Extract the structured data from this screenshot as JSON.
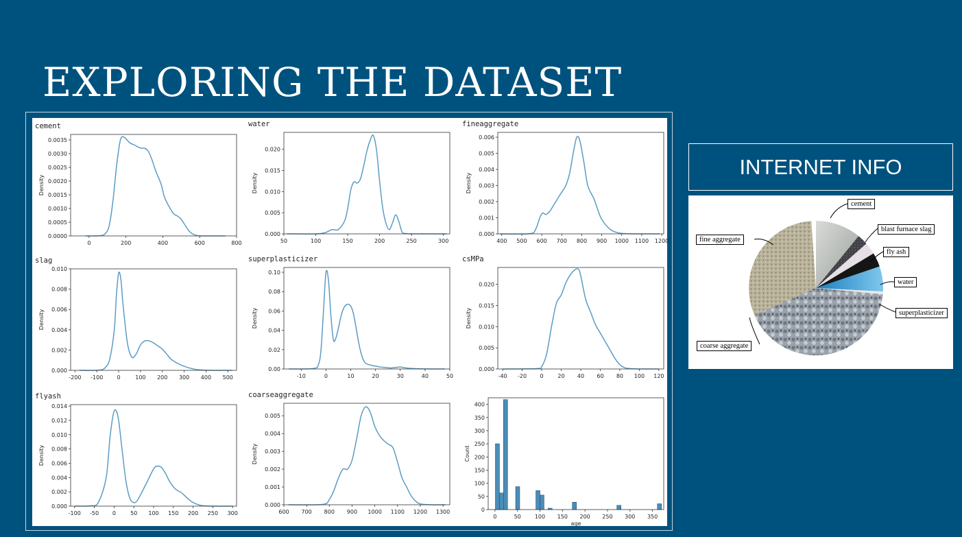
{
  "slide": {
    "title": "EXPLORING THE DATASET",
    "info_header": "INTERNET INFO",
    "colors": {
      "background": "#00527E",
      "line": "#5B9BC3",
      "bar": "#4C8DB8"
    }
  },
  "chart_data": [
    {
      "id": "cement",
      "type": "line",
      "name": "cement",
      "ylabel": "Density",
      "xlim": [
        -100,
        800
      ],
      "ylim": [
        0,
        0.0037
      ],
      "xticks": [
        0,
        200,
        400,
        600,
        800
      ],
      "yticks": [
        0.0,
        0.0005,
        0.001,
        0.0015,
        0.002,
        0.0025,
        0.003,
        0.0035
      ],
      "ytick_labels": [
        "0.0000",
        "0.0005",
        "0.0010",
        "0.0015",
        "0.0020",
        "0.0025",
        "0.0030",
        "0.0035"
      ],
      "x": [
        -20,
        60,
        90,
        110,
        130,
        150,
        170,
        190,
        220,
        250,
        280,
        300,
        320,
        340,
        360,
        390,
        410,
        440,
        460,
        480,
        500,
        520,
        540,
        560,
        590,
        620,
        650,
        700,
        740
      ],
      "y": [
        0,
        1e-05,
        0.0001,
        0.0004,
        0.0013,
        0.0026,
        0.0035,
        0.0036,
        0.0034,
        0.0033,
        0.0032,
        0.0032,
        0.0031,
        0.0028,
        0.0024,
        0.0019,
        0.0014,
        0.001,
        0.0008,
        0.00072,
        0.0006,
        0.0004,
        0.0002,
        8e-05,
        1e-05,
        0,
        0,
        0,
        0
      ]
    },
    {
      "id": "water",
      "type": "line",
      "name": "water",
      "ylabel": "Density",
      "xlim": [
        50,
        310
      ],
      "ylim": [
        0,
        0.024
      ],
      "xticks": [
        50,
        100,
        150,
        200,
        250,
        300
      ],
      "yticks": [
        0.0,
        0.005,
        0.01,
        0.015,
        0.02
      ],
      "ytick_labels": [
        "0.000",
        "0.005",
        "0.010",
        "0.015",
        "0.020"
      ],
      "x": [
        55,
        100,
        115,
        125,
        135,
        145,
        150,
        155,
        160,
        165,
        170,
        175,
        180,
        185,
        190,
        195,
        200,
        205,
        210,
        215,
        220,
        225,
        230,
        235,
        240,
        250,
        280,
        305
      ],
      "y": [
        0,
        0,
        0.0003,
        0.001,
        0.001,
        0.003,
        0.006,
        0.0105,
        0.0123,
        0.012,
        0.013,
        0.016,
        0.0195,
        0.022,
        0.0233,
        0.02,
        0.0125,
        0.006,
        0.0025,
        0.001,
        0.0025,
        0.0045,
        0.003,
        0.0005,
        0.0001,
        0,
        0,
        0
      ]
    },
    {
      "id": "fineaggregate",
      "type": "line",
      "name": "fineaggregate",
      "ylabel": "Density",
      "xlim": [
        380,
        1210
      ],
      "ylim": [
        0,
        0.0063
      ],
      "xticks": [
        400,
        500,
        600,
        700,
        800,
        900,
        1000,
        1100,
        1200
      ],
      "yticks": [
        0.0,
        0.001,
        0.002,
        0.003,
        0.004,
        0.005,
        0.006
      ],
      "ytick_labels": [
        "0.000",
        "0.001",
        "0.002",
        "0.003",
        "0.004",
        "0.005",
        "0.006"
      ],
      "x": [
        390,
        540,
        570,
        590,
        605,
        620,
        640,
        660,
        690,
        720,
        740,
        760,
        775,
        790,
        810,
        830,
        860,
        880,
        900,
        940,
        980,
        1030,
        1100,
        1190
      ],
      "y": [
        0,
        1e-05,
        0.0003,
        0.001,
        0.0013,
        0.0012,
        0.0014,
        0.0018,
        0.0024,
        0.003,
        0.0038,
        0.0052,
        0.006,
        0.0058,
        0.0045,
        0.003,
        0.0022,
        0.0015,
        0.0009,
        0.0003,
        7e-05,
        1e-05,
        0,
        0
      ]
    },
    {
      "id": "slag",
      "type": "line",
      "name": "slag",
      "ylabel": "Density",
      "xlim": [
        -220,
        540
      ],
      "ylim": [
        0,
        0.01
      ],
      "xticks": [
        -200,
        -100,
        0,
        100,
        200,
        300,
        400,
        500
      ],
      "yticks": [
        0.0,
        0.002,
        0.004,
        0.006,
        0.008,
        0.01
      ],
      "ytick_labels": [
        "0.000",
        "0.002",
        "0.004",
        "0.006",
        "0.008",
        "0.010"
      ],
      "x": [
        -180,
        -90,
        -60,
        -40,
        -20,
        -10,
        0,
        10,
        20,
        40,
        60,
        80,
        100,
        120,
        140,
        160,
        180,
        200,
        220,
        240,
        260,
        300,
        350,
        400,
        450,
        520
      ],
      "y": [
        0,
        2e-05,
        0.0003,
        0.0012,
        0.004,
        0.0075,
        0.0096,
        0.009,
        0.0065,
        0.0027,
        0.0013,
        0.0016,
        0.0025,
        0.0029,
        0.0029,
        0.0027,
        0.0024,
        0.0021,
        0.0016,
        0.0011,
        0.0008,
        0.0004,
        0.0001,
        2e-05,
        0,
        0
      ]
    },
    {
      "id": "superplasticizer",
      "type": "line",
      "name": "superplasticizer",
      "ylabel": "Density",
      "xlim": [
        -17,
        50
      ],
      "ylim": [
        0,
        0.105
      ],
      "xticks": [
        -10,
        0,
        10,
        20,
        30,
        40,
        50
      ],
      "yticks": [
        0.0,
        0.02,
        0.04,
        0.06,
        0.08,
        0.1
      ],
      "ytick_labels": [
        "0.00",
        "0.02",
        "0.04",
        "0.06",
        "0.08",
        "0.10"
      ],
      "x": [
        -15,
        -5,
        -3,
        -2,
        -1,
        0,
        1,
        2,
        3,
        4,
        5,
        6,
        7,
        8,
        9,
        10,
        11,
        12,
        13,
        14,
        15,
        16,
        18,
        20,
        22,
        24,
        26,
        28,
        30,
        32,
        35,
        40,
        48
      ],
      "y": [
        0,
        0.0005,
        0.005,
        0.02,
        0.06,
        0.1,
        0.092,
        0.055,
        0.03,
        0.032,
        0.042,
        0.054,
        0.062,
        0.066,
        0.067,
        0.065,
        0.058,
        0.045,
        0.03,
        0.018,
        0.01,
        0.006,
        0.004,
        0.003,
        0.002,
        0.0015,
        0.001,
        0.0015,
        0.002,
        0.0012,
        0.0005,
        0.0001,
        0
      ]
    },
    {
      "id": "csmpa",
      "type": "line",
      "name": "csMPa",
      "ylabel": "Density",
      "xlim": [
        -45,
        125
      ],
      "ylim": [
        0,
        0.024
      ],
      "xticks": [
        -40,
        -20,
        0,
        20,
        40,
        60,
        80,
        100,
        120
      ],
      "yticks": [
        0.0,
        0.005,
        0.01,
        0.015,
        0.02
      ],
      "ytick_labels": [
        "0.000",
        "0.005",
        "0.010",
        "0.015",
        "0.020"
      ],
      "x": [
        -40,
        -5,
        0,
        5,
        10,
        15,
        20,
        25,
        30,
        35,
        38,
        40,
        45,
        50,
        55,
        60,
        65,
        70,
        75,
        80,
        85,
        90,
        100,
        120
      ],
      "y": [
        0,
        0.0001,
        0.0006,
        0.0035,
        0.01,
        0.0155,
        0.0175,
        0.0205,
        0.0225,
        0.0236,
        0.0235,
        0.022,
        0.0165,
        0.0135,
        0.0105,
        0.0085,
        0.0065,
        0.0045,
        0.0025,
        0.001,
        0.0003,
        0.0001,
        0,
        0
      ]
    },
    {
      "id": "flyash",
      "type": "line",
      "name": "flyash",
      "ylabel": "Density",
      "xlim": [
        -110,
        310
      ],
      "ylim": [
        0,
        0.0142
      ],
      "xticks": [
        -100,
        -50,
        0,
        50,
        100,
        150,
        200,
        250,
        300
      ],
      "yticks": [
        0.0,
        0.002,
        0.004,
        0.006,
        0.008,
        0.01,
        0.012,
        0.014
      ],
      "ytick_labels": [
        "0.000",
        "0.002",
        "0.004",
        "0.006",
        "0.008",
        "0.010",
        "0.012",
        "0.014"
      ],
      "x": [
        -100,
        -60,
        -40,
        -20,
        -10,
        0,
        10,
        20,
        30,
        40,
        50,
        60,
        80,
        100,
        110,
        120,
        130,
        140,
        150,
        160,
        170,
        180,
        190,
        200,
        220,
        250,
        300
      ],
      "y": [
        0,
        5e-05,
        0.0005,
        0.004,
        0.0098,
        0.0133,
        0.0125,
        0.008,
        0.0035,
        0.0011,
        0.0005,
        0.0009,
        0.003,
        0.0052,
        0.0056,
        0.0054,
        0.0046,
        0.0035,
        0.0027,
        0.0022,
        0.0019,
        0.0014,
        0.0009,
        0.0005,
        0.0001,
        0,
        0
      ]
    },
    {
      "id": "coarseaggregate",
      "type": "line",
      "name": "coarseaggregate",
      "ylabel": "Density",
      "xlim": [
        600,
        1330
      ],
      "ylim": [
        0,
        0.0057
      ],
      "xticks": [
        600,
        700,
        800,
        900,
        1000,
        1100,
        1200,
        1300
      ],
      "yticks": [
        0.0,
        0.001,
        0.002,
        0.003,
        0.004,
        0.005
      ],
      "ytick_labels": [
        "0.000",
        "0.001",
        "0.002",
        "0.003",
        "0.004",
        "0.005"
      ],
      "x": [
        620,
        770,
        800,
        820,
        840,
        860,
        880,
        900,
        920,
        940,
        960,
        980,
        1000,
        1020,
        1040,
        1060,
        1080,
        1100,
        1120,
        1140,
        1160,
        1180,
        1200,
        1250,
        1310
      ],
      "y": [
        0,
        2e-05,
        0.0003,
        0.0008,
        0.0015,
        0.002,
        0.002,
        0.0025,
        0.0037,
        0.005,
        0.0055,
        0.0052,
        0.0044,
        0.0039,
        0.0036,
        0.0034,
        0.0032,
        0.0024,
        0.0015,
        0.001,
        0.0005,
        0.0002,
        5e-05,
        0,
        0
      ]
    },
    {
      "id": "age",
      "type": "bar",
      "name": "",
      "xlabel": "age",
      "ylabel": "Count",
      "xlim": [
        -15,
        375
      ],
      "ylim": [
        0,
        425
      ],
      "xticks": [
        0,
        50,
        100,
        150,
        200,
        250,
        300,
        350
      ],
      "yticks": [
        0,
        50,
        100,
        150,
        200,
        250,
        300,
        350,
        400
      ],
      "bin_width": 9,
      "bins": [
        1,
        10,
        19,
        46,
        91,
        100,
        118,
        172,
        271,
        361
      ],
      "values": [
        250,
        63,
        418,
        87,
        72,
        55,
        5,
        28,
        16,
        22
      ]
    }
  ],
  "pie_labels": {
    "cement": "cement",
    "slag": "blast furnace slag",
    "flyash": "fly ash",
    "water": "water",
    "superplasticizer": "superplasticizer",
    "coarse": "coarse aggregate",
    "fine": "fine aggregate"
  }
}
